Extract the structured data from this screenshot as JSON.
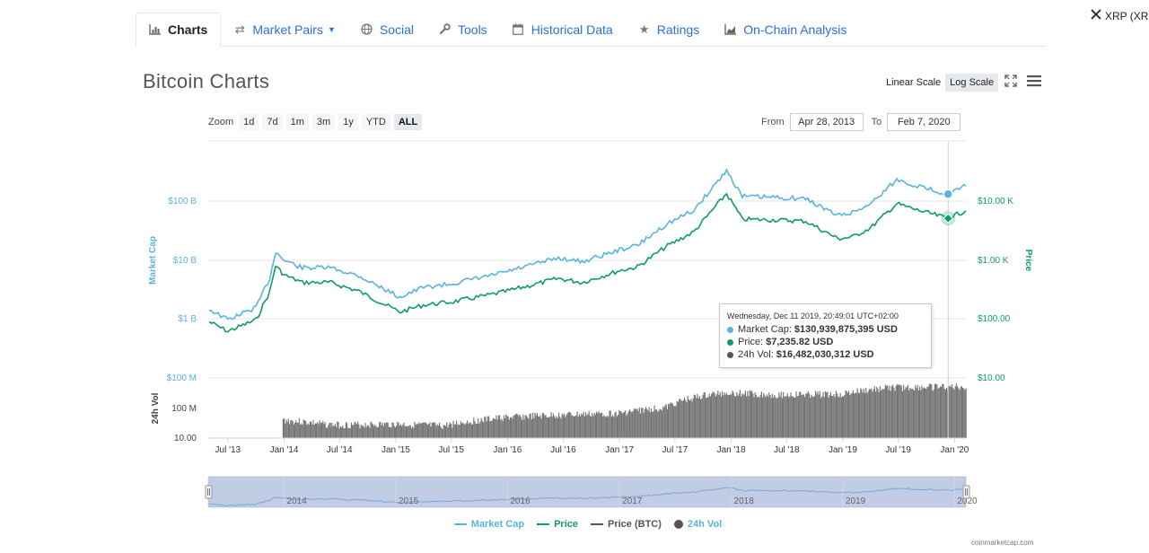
{
  "tabs": [
    {
      "label": "Charts",
      "icon": "bar-chart-icon",
      "active": true
    },
    {
      "label": "Market Pairs",
      "icon": "exchange-arrows-icon"
    },
    {
      "label": "Social",
      "icon": "globe-icon"
    },
    {
      "label": "Tools",
      "icon": "wrench-icon"
    },
    {
      "label": "Historical Data",
      "icon": "calendar-icon"
    },
    {
      "label": "Ratings",
      "icon": "star-icon"
    },
    {
      "label": "On-Chain Analysis",
      "icon": "area-chart-icon"
    }
  ],
  "compare": {
    "label": "XRP (XR",
    "icon": "close-icon"
  },
  "page_title": "Bitcoin Charts",
  "scale": {
    "linear": "Linear Scale",
    "log": "Log Scale",
    "selected": "Log Scale"
  },
  "zoom": {
    "label": "Zoom",
    "options": [
      "1d",
      "7d",
      "1m",
      "3m",
      "1y",
      "YTD",
      "ALL"
    ],
    "selected": "ALL"
  },
  "range": {
    "from_label": "From",
    "from": "Apr 28, 2013",
    "to_label": "To",
    "to": "Feb 7, 2020"
  },
  "tooltip": {
    "header": "Wednesday, Dec 11 2019, 20:49:01 UTC+02:00",
    "rows": [
      {
        "label": "Market Cap:",
        "value": "$130,939,875,395 USD",
        "color": "#5ab4de"
      },
      {
        "label": "Price:",
        "value": "$7,235.82 USD",
        "color": "#0d9b6c"
      },
      {
        "label": "24h Vol:",
        "value": "$16,482,030,312 USD",
        "color": "#555555"
      }
    ]
  },
  "legend": [
    {
      "label": "Market Cap",
      "color": "#5ab4de",
      "kind": "line"
    },
    {
      "label": "Price",
      "color": "#0d9b6c",
      "kind": "line"
    },
    {
      "label": "Price (BTC)",
      "color": "#555555",
      "kind": "line"
    },
    {
      "label": "24h Vol",
      "color": "#555555",
      "kind": "dot"
    }
  ],
  "credits": "coinmarketcap.com",
  "chart_data": {
    "type": "line",
    "log_scale": true,
    "x_range": [
      "2013-04-28",
      "2020-02-07"
    ],
    "x_ticks": [
      "Jul '13",
      "Jan '14",
      "Jul '14",
      "Jan '15",
      "Jul '15",
      "Jan '16",
      "Jul '16",
      "Jan '17",
      "Jul '17",
      "Jan '18",
      "Jul '18",
      "Jan '19",
      "Jul '19",
      "Jan '20"
    ],
    "navigator_ticks": [
      "2014",
      "2015",
      "2016",
      "2017",
      "2018",
      "2019",
      "2020"
    ],
    "y_left_label": "Market Cap",
    "y_left_ticks": [
      "$100 B",
      "$10 B",
      "$1 B"
    ],
    "y_right_label": "Price",
    "y_right_ticks": [
      "$10.00 K",
      "$1.00 K",
      "$100.00"
    ],
    "vol_axis_label": "24h Vol",
    "vol_left_ticks": [
      "$100 M",
      "100 M",
      "10.00"
    ],
    "vol_right_ticks": [
      "$10.00"
    ],
    "grid": true,
    "legend_position": "bottom",
    "series": [
      {
        "name": "Market Cap",
        "color": "#5ab4de",
        "x": [
          "2013-05-01",
          "2013-07-01",
          "2013-10-01",
          "2013-11-15",
          "2013-12-04",
          "2014-01-01",
          "2014-03-01",
          "2014-06-01",
          "2014-09-01",
          "2015-01-14",
          "2015-04-01",
          "2015-07-01",
          "2015-11-04",
          "2016-01-01",
          "2016-06-15",
          "2016-09-01",
          "2017-01-01",
          "2017-03-01",
          "2017-06-01",
          "2017-09-01",
          "2017-12-17",
          "2018-02-06",
          "2018-06-01",
          "2018-09-01",
          "2018-12-15",
          "2019-02-01",
          "2019-04-01",
          "2019-06-26",
          "2019-09-01",
          "2019-12-11",
          "2020-02-07"
        ],
        "values": [
          1.5,
          1.0,
          1.6,
          5.0,
          14.0,
          10.0,
          7.5,
          7.5,
          5.5,
          2.4,
          3.5,
          4.0,
          5.5,
          6.5,
          11.0,
          9.5,
          15.0,
          18.0,
          40.0,
          70.0,
          330.0,
          120.0,
          115.0,
          110.0,
          57.0,
          64.0,
          90.0,
          230.0,
          180.0,
          131.0,
          180.0
        ]
      },
      {
        "name": "Price",
        "color": "#0d9b6c",
        "x": [
          "2013-05-01",
          "2013-07-01",
          "2013-10-01",
          "2013-11-15",
          "2013-12-04",
          "2014-01-01",
          "2014-03-01",
          "2014-06-01",
          "2014-09-01",
          "2015-01-14",
          "2015-04-01",
          "2015-07-01",
          "2015-11-04",
          "2016-01-01",
          "2016-06-15",
          "2016-09-01",
          "2017-01-01",
          "2017-03-01",
          "2017-06-01",
          "2017-09-01",
          "2017-12-17",
          "2018-02-06",
          "2018-06-01",
          "2018-09-01",
          "2018-12-15",
          "2019-02-01",
          "2019-04-01",
          "2019-06-26",
          "2019-09-01",
          "2019-12-11",
          "2020-02-07"
        ],
        "values": [
          130,
          90,
          140,
          420,
          1150,
          800,
          600,
          600,
          430,
          190,
          250,
          280,
          370,
          430,
          700,
          600,
          950,
          1100,
          2400,
          4300,
          19000,
          7000,
          6800,
          6500,
          3300,
          3500,
          5000,
          12800,
          10000,
          7235.82,
          9800
        ]
      }
    ],
    "volume": {
      "name": "24h Vol",
      "color": "#777777",
      "x": [
        "2013-12-27",
        "2014-06-01",
        "2015-01-01",
        "2015-06-01",
        "2016-01-01",
        "2016-06-01",
        "2017-01-01",
        "2017-06-01",
        "2017-12-17",
        "2018-06-01",
        "2019-01-01",
        "2019-06-01",
        "2020-02-07"
      ],
      "values": [
        80,
        45,
        50,
        40,
        110,
        140,
        180,
        350,
        2000,
        1500,
        1700,
        3500,
        4000
      ]
    }
  }
}
